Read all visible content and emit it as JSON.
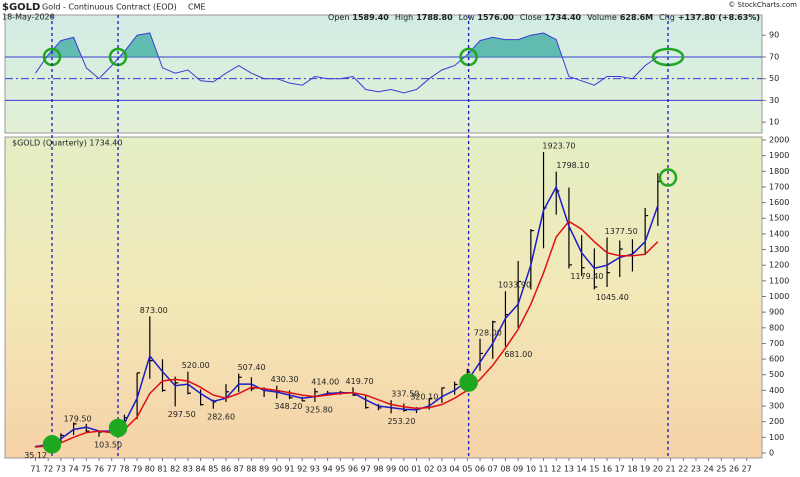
{
  "header": {
    "symbol": "$GOLD",
    "name": "Gold - Continuous Contract (EOD)",
    "exchange": "CME",
    "date": "18-May-2020",
    "credit": "© StockCharts.com",
    "quote": [
      {
        "label": "Open",
        "value": "1589.40"
      },
      {
        "label": "High",
        "value": "1788.80"
      },
      {
        "label": "Low",
        "value": "1576.00"
      },
      {
        "label": "Close",
        "value": "1734.40"
      },
      {
        "label": "Volume",
        "value": "628.6M"
      },
      {
        "label": "Chg",
        "value": "+137.80 (+8.63%)"
      }
    ]
  },
  "chart_data": [
    {
      "type": "line",
      "color": "#3b3bd6",
      "fill": "#3aa9a0",
      "x": [
        1971,
        1972,
        1973,
        1974,
        1975,
        1976,
        1977,
        1978,
        1979,
        1980,
        1981,
        1982,
        1983,
        1984,
        1985,
        1986,
        1987,
        1988,
        1989,
        1990,
        1991,
        1992,
        1993,
        1994,
        1995,
        1996,
        1997,
        1998,
        1999,
        2000,
        2001,
        2002,
        2003,
        2004,
        2005,
        2006,
        2007,
        2008,
        2009,
        2010,
        2011,
        2012,
        2013,
        2014,
        2015,
        2016,
        2017,
        2018,
        2019,
        2020
      ],
      "values": [
        55,
        72,
        85,
        88,
        60,
        50,
        62,
        75,
        90,
        92,
        60,
        55,
        58,
        48,
        47,
        55,
        62,
        55,
        50,
        50,
        46,
        44,
        52,
        50,
        50,
        52,
        40,
        38,
        40,
        37,
        40,
        50,
        58,
        62,
        72,
        85,
        88,
        86,
        86,
        90,
        92,
        86,
        52,
        48,
        44,
        52,
        52,
        50,
        62,
        70
      ],
      "xlim": [
        1968.6,
        2028.2
      ],
      "ylim": [
        0,
        108.6
      ],
      "yticks": [
        90,
        70,
        50,
        30,
        10
      ],
      "reference_lines": [
        70,
        50,
        30
      ],
      "highlights": {
        "x": [
          1972.3,
          1977.5,
          2005.1,
          2020.8
        ],
        "values": [
          70,
          70,
          70,
          70
        ],
        "filled": [
          false,
          false,
          false,
          false
        ]
      }
    },
    {
      "type": "hlc",
      "label": "$GOLD (Quarterly) 1734.40",
      "color": "#000000",
      "x": [
        1971,
        1972,
        1973,
        1974,
        1975,
        1976,
        1977,
        1978,
        1979,
        1980,
        1981,
        1982,
        1983,
        1984,
        1985,
        1986,
        1987,
        1988,
        1989,
        1990,
        1991,
        1992,
        1993,
        1994,
        1995,
        1996,
        1997,
        1998,
        1999,
        2000,
        2001,
        2002,
        2003,
        2004,
        2005,
        2006,
        2007,
        2008,
        2009,
        2010,
        2011,
        2012,
        2013,
        2014,
        2015,
        2016,
        2017,
        2018,
        2019,
        2020
      ],
      "high": [
        44,
        70,
        127,
        195,
        186,
        140,
        168,
        245,
        512,
        873,
        599,
        488,
        520,
        406,
        341,
        440,
        507.4,
        484,
        420,
        430.3,
        400,
        360,
        414,
        397,
        397,
        419.7,
        368,
        314,
        337.5,
        316,
        293,
        350,
        418,
        456,
        538,
        730,
        845,
        1033.9,
        1227,
        1431,
        1923.7,
        1798.1,
        1696,
        1392,
        1307,
        1377.5,
        1358,
        1366,
        1566,
        1788.8
      ],
      "low": [
        37,
        44,
        64,
        115,
        128,
        103.5,
        129,
        165,
        216,
        474,
        391,
        297.5,
        374,
        303,
        282.6,
        326,
        390,
        395,
        358,
        348.2,
        344,
        330,
        326,
        372,
        372,
        367,
        283,
        273,
        253.2,
        263,
        255,
        277,
        320,
        373,
        411,
        525,
        602,
        681,
        800,
        1045,
        1308,
        1523,
        1179.4,
        1131,
        1045.4,
        1061,
        1124,
        1160,
        1266,
        1451
      ],
      "close": [
        43,
        64,
        112,
        186,
        140,
        134,
        165,
        226,
        512,
        590,
        400,
        448,
        382,
        309,
        327,
        391,
        484,
        410,
        401,
        391,
        353,
        333,
        391,
        383,
        387,
        369,
        290,
        288,
        288,
        272,
        279,
        348,
        416,
        438,
        517,
        636,
        838,
        884,
        1096,
        1421,
        1566,
        1675,
        1202,
        1184,
        1061,
        1152,
        1303,
        1282,
        1517,
        1734.4
      ],
      "series": [
        {
          "color": "#1c1cc8",
          "values": [
            40,
            55,
            90,
            150,
            165,
            140,
            140,
            190,
            350,
            620,
            520,
            430,
            440,
            380,
            330,
            350,
            440,
            440,
            400,
            390,
            370,
            350,
            360,
            380,
            385,
            385,
            340,
            300,
            290,
            280,
            275,
            300,
            360,
            400,
            460,
            580,
            700,
            860,
            950,
            1200,
            1550,
            1700,
            1450,
            1280,
            1180,
            1200,
            1250,
            1270,
            1350,
            1580
          ]
        },
        {
          "color": "#e01010",
          "values": [
            38,
            45,
            65,
            100,
            130,
            140,
            130,
            150,
            230,
            380,
            460,
            470,
            460,
            420,
            370,
            350,
            380,
            420,
            410,
            400,
            385,
            370,
            360,
            370,
            380,
            385,
            370,
            340,
            310,
            295,
            285,
            290,
            310,
            350,
            400,
            470,
            560,
            670,
            790,
            950,
            1150,
            1380,
            1480,
            1430,
            1350,
            1280,
            1260,
            1260,
            1270,
            1350
          ]
        }
      ],
      "price_labels": {
        "x": [
          1970.9,
          1974.0,
          1976.4,
          1980.0,
          1982.2,
          1983.3,
          1985.3,
          1987.7,
          1990.6,
          1990.3,
          1993.5,
          1993.0,
          1996.2,
          1999.8,
          1999.5,
          2001.3,
          2006.3,
          2008.7,
          2008.2,
          2011.7,
          2012.8,
          2013.9,
          2015.9,
          2016.6
        ],
        "values": [
          35.12,
          179.5,
          103.5,
          873,
          297.5,
          520,
          282.6,
          507.4,
          348.2,
          430.3,
          414,
          325.8,
          419.7,
          337.5,
          253.2,
          320.1,
          728,
          681,
          1033.9,
          1923.7,
          1798.1,
          1179.4,
          1045.4,
          1377.5
        ],
        "value_labels": [
          "35.12",
          "179.50",
          "103.50",
          "873.00",
          "297.50",
          "520.00",
          "282.60",
          "507.40",
          "348.20",
          "430.30",
          "414.00",
          "325.80",
          "419.70",
          "337.50",
          "253.20",
          "320.10",
          "728.00",
          "681.00",
          "1033.90",
          "1923.70",
          "1798.10",
          "1179.40",
          "1045.40",
          "1377.50"
        ]
      },
      "highlights": {
        "x": [
          1972.3,
          1977.5,
          2005.1,
          2020.8
        ],
        "values": [
          55,
          160,
          450,
          1760
        ],
        "filled": [
          true,
          true,
          true,
          false
        ]
      },
      "xlim": [
        1968.6,
        2028.2
      ],
      "ylim": [
        -32.05,
        2019.2
      ],
      "yticks": [
        0,
        100,
        200,
        300,
        400,
        500,
        600,
        700,
        800,
        900,
        1000,
        1100,
        1200,
        1300,
        1400,
        1500,
        1600,
        1700,
        1800,
        1900,
        2000
      ],
      "xticks": [
        {
          "value": 1971,
          "label": "71"
        },
        {
          "value": 1972,
          "label": "72"
        },
        {
          "value": 1973,
          "label": "73"
        },
        {
          "value": 1974,
          "label": "74"
        },
        {
          "value": 1975,
          "label": "75"
        },
        {
          "value": 1976,
          "label": "76"
        },
        {
          "value": 1977,
          "label": "77"
        },
        {
          "value": 1978,
          "label": "78"
        },
        {
          "value": 1979,
          "label": "79"
        },
        {
          "value": 1980,
          "label": "80"
        },
        {
          "value": 1981,
          "label": "81"
        },
        {
          "value": 1982,
          "label": "82"
        },
        {
          "value": 1983,
          "label": "83"
        },
        {
          "value": 1984,
          "label": "84"
        },
        {
          "value": 1985,
          "label": "85"
        },
        {
          "value": 1986,
          "label": "86"
        },
        {
          "value": 1987,
          "label": "87"
        },
        {
          "value": 1988,
          "label": "88"
        },
        {
          "value": 1989,
          "label": "89"
        },
        {
          "value": 1990,
          "label": "90"
        },
        {
          "value": 1991,
          "label": "91"
        },
        {
          "value": 1992,
          "label": "92"
        },
        {
          "value": 1993,
          "label": "93"
        },
        {
          "value": 1994,
          "label": "94"
        },
        {
          "value": 1995,
          "label": "95"
        },
        {
          "value": 1996,
          "label": "96"
        },
        {
          "value": 1997,
          "label": "97"
        },
        {
          "value": 1998,
          "label": "98"
        },
        {
          "value": 1999,
          "label": "99"
        },
        {
          "value": 2000,
          "label": "00"
        },
        {
          "value": 2001,
          "label": "01"
        },
        {
          "value": 2002,
          "label": "02"
        },
        {
          "value": 2003,
          "label": "03"
        },
        {
          "value": 2004,
          "label": "04"
        },
        {
          "value": 2005,
          "label": "05"
        },
        {
          "value": 2006,
          "label": "06"
        },
        {
          "value": 2007,
          "label": "07"
        },
        {
          "value": 2008,
          "label": "08"
        },
        {
          "value": 2009,
          "label": "09"
        },
        {
          "value": 2010,
          "label": "10"
        },
        {
          "value": 2011,
          "label": "11"
        },
        {
          "value": 2012,
          "label": "12"
        },
        {
          "value": 2013,
          "label": "13"
        },
        {
          "value": 2014,
          "label": "14"
        },
        {
          "value": 2015,
          "label": "15"
        },
        {
          "value": 2016,
          "label": "16"
        },
        {
          "value": 2017,
          "label": "17"
        },
        {
          "value": 2018,
          "label": "18"
        },
        {
          "value": 2019,
          "label": "19"
        },
        {
          "value": 2020,
          "label": "20"
        },
        {
          "value": 2021,
          "label": "21"
        },
        {
          "value": 2022,
          "label": "22"
        },
        {
          "value": 2023,
          "label": "23"
        },
        {
          "value": 2024,
          "label": "24"
        },
        {
          "value": 2025,
          "label": "25"
        },
        {
          "value": 2026,
          "label": "26"
        },
        {
          "value": 2027,
          "label": "27"
        }
      ]
    }
  ]
}
